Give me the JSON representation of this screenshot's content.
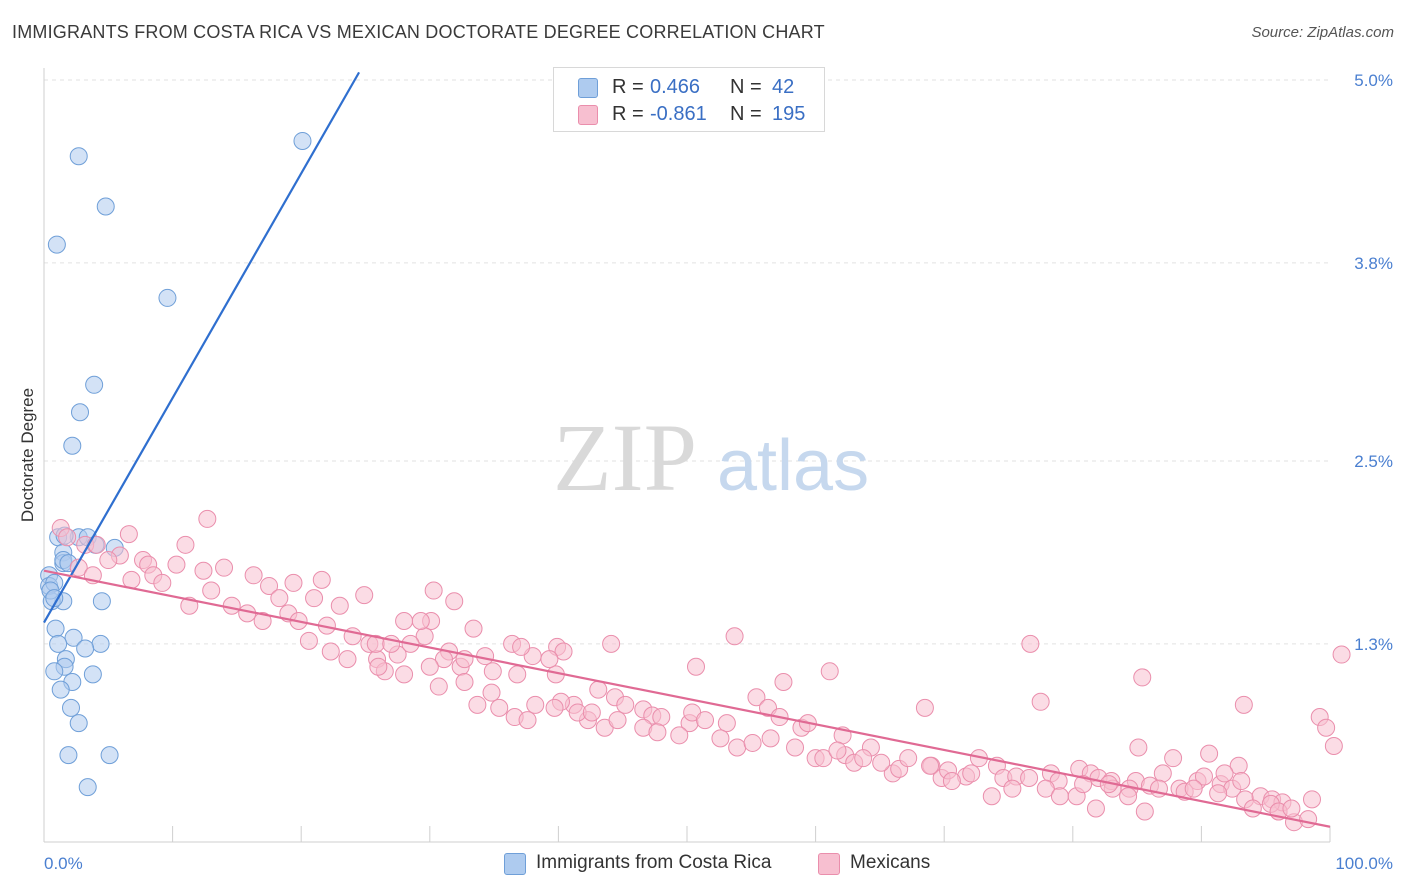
{
  "title": "IMMIGRANTS FROM COSTA RICA VS MEXICAN DOCTORATE DEGREE CORRELATION CHART",
  "source": "Source: ZipAtlas.com",
  "watermark": {
    "zip": "ZIP",
    "atlas": "atlas"
  },
  "legend": {
    "rows": [
      {
        "r_label": "R =",
        "r_value": "0.466",
        "n_label": "N =",
        "n_value": "42",
        "color": "#aecbef",
        "border": "#6f9fd8"
      },
      {
        "r_label": "R =",
        "r_value": "-0.861",
        "n_label": "N =",
        "n_value": "195",
        "color": "#f7bfd0",
        "border": "#ea8eac"
      }
    ]
  },
  "bottom_legend": [
    {
      "label": "Immigrants from Costa Rica",
      "color": "#aecbef",
      "border": "#6f9fd8"
    },
    {
      "label": "Mexicans",
      "color": "#f7bfd0",
      "border": "#ea8eac"
    }
  ],
  "chart_data": {
    "type": "scatter",
    "ylabel": "Doctorate Degree",
    "xlim": [
      0,
      100
    ],
    "ylim": [
      0.0,
      5.0
    ],
    "x_tick_labels": [
      "0.0%",
      "100.0%"
    ],
    "y_ticks": [
      1.3,
      2.5,
      3.8,
      5.0
    ],
    "y_tick_labels": [
      "1.3%",
      "2.5%",
      "3.8%",
      "5.0%"
    ],
    "series": [
      {
        "name": "Immigrants from Costa Rica",
        "color": "#6f9fd8",
        "fill": "#aecbef",
        "line_color": "#2f6fcf",
        "trend": {
          "x0": 0,
          "y0": 1.44,
          "x1": 24.5,
          "y1": 5.05
        },
        "points": [
          [
            2.7,
            4.5
          ],
          [
            4.8,
            4.17
          ],
          [
            1.0,
            3.92
          ],
          [
            9.6,
            3.57
          ],
          [
            1.1,
            2.0
          ],
          [
            2.7,
            2.0
          ],
          [
            1.5,
            1.9
          ],
          [
            1.5,
            1.83
          ],
          [
            0.4,
            1.75
          ],
          [
            0.4,
            1.68
          ],
          [
            1.5,
            1.58
          ],
          [
            0.6,
            1.58
          ],
          [
            4.5,
            1.58
          ],
          [
            0.9,
            1.4
          ],
          [
            2.3,
            1.34
          ],
          [
            1.1,
            1.3
          ],
          [
            4.4,
            1.3
          ],
          [
            3.2,
            1.27
          ],
          [
            1.7,
            1.2
          ],
          [
            1.6,
            1.15
          ],
          [
            0.8,
            1.12
          ],
          [
            3.8,
            1.1
          ],
          [
            2.2,
            1.05
          ],
          [
            1.3,
            1.0
          ],
          [
            2.1,
            0.88
          ],
          [
            2.7,
            0.78
          ],
          [
            1.9,
            0.57
          ],
          [
            5.1,
            0.57
          ],
          [
            3.4,
            0.36
          ],
          [
            3.4,
            2.0
          ],
          [
            5.5,
            1.93
          ],
          [
            4.0,
            1.95
          ],
          [
            1.5,
            1.85
          ],
          [
            1.9,
            1.83
          ],
          [
            0.8,
            1.7
          ],
          [
            0.5,
            1.65
          ],
          [
            1.6,
            2.01
          ],
          [
            20.1,
            4.6
          ],
          [
            3.9,
            3.0
          ],
          [
            2.8,
            2.82
          ],
          [
            2.2,
            2.6
          ],
          [
            0.8,
            1.6
          ]
        ]
      },
      {
        "name": "Mexicans",
        "color": "#ea8eac",
        "fill": "#f7bfd0",
        "line_color": "#e06a94",
        "trend": {
          "x0": 0,
          "y0": 1.78,
          "x1": 100,
          "y1": 0.1
        },
        "points": [
          [
            1.3,
            2.06
          ],
          [
            1.8,
            2.0
          ],
          [
            3.2,
            1.95
          ],
          [
            6.6,
            2.02
          ],
          [
            4.1,
            1.95
          ],
          [
            5.9,
            1.88
          ],
          [
            7.7,
            1.85
          ],
          [
            11.0,
            1.95
          ],
          [
            12.7,
            2.12
          ],
          [
            8.1,
            1.82
          ],
          [
            10.3,
            1.82
          ],
          [
            5.0,
            1.85
          ],
          [
            6.8,
            1.72
          ],
          [
            8.5,
            1.75
          ],
          [
            9.2,
            1.7
          ],
          [
            2.7,
            1.8
          ],
          [
            3.8,
            1.75
          ],
          [
            12.4,
            1.78
          ],
          [
            13.0,
            1.65
          ],
          [
            11.3,
            1.55
          ],
          [
            14.0,
            1.8
          ],
          [
            16.3,
            1.75
          ],
          [
            17.5,
            1.68
          ],
          [
            18.3,
            1.6
          ],
          [
            19.4,
            1.7
          ],
          [
            21.6,
            1.72
          ],
          [
            19.0,
            1.5
          ],
          [
            21.0,
            1.6
          ],
          [
            23.0,
            1.55
          ],
          [
            22.0,
            1.42
          ],
          [
            24.0,
            1.35
          ],
          [
            14.6,
            1.55
          ],
          [
            15.8,
            1.5
          ],
          [
            17.0,
            1.45
          ],
          [
            19.8,
            1.45
          ],
          [
            20.6,
            1.32
          ],
          [
            22.3,
            1.25
          ],
          [
            25.9,
            1.2
          ],
          [
            27.5,
            1.23
          ],
          [
            28.0,
            1.1
          ],
          [
            30.7,
            1.02
          ],
          [
            30.1,
            1.45
          ],
          [
            29.6,
            1.35
          ],
          [
            31.5,
            1.25
          ],
          [
            32.4,
            1.15
          ],
          [
            33.4,
            1.4
          ],
          [
            34.3,
            1.22
          ],
          [
            36.4,
            1.3
          ],
          [
            36.8,
            1.1
          ],
          [
            39.9,
            1.28
          ],
          [
            38.0,
            1.22
          ],
          [
            39.8,
            1.1
          ],
          [
            40.4,
            1.25
          ],
          [
            41.2,
            0.9
          ],
          [
            40.2,
            0.92
          ],
          [
            42.3,
            0.8
          ],
          [
            43.1,
            1.0
          ],
          [
            44.4,
            0.95
          ],
          [
            45.2,
            0.9
          ],
          [
            46.6,
            0.87
          ],
          [
            47.3,
            0.83
          ],
          [
            48.0,
            0.82
          ],
          [
            50.2,
            0.78
          ],
          [
            50.4,
            0.85
          ],
          [
            51.4,
            0.8
          ],
          [
            53.1,
            0.78
          ],
          [
            55.4,
            0.95
          ],
          [
            56.3,
            0.88
          ],
          [
            57.2,
            0.82
          ],
          [
            58.9,
            0.75
          ],
          [
            59.4,
            0.78
          ],
          [
            62.1,
            0.7
          ],
          [
            62.3,
            0.57
          ],
          [
            63.0,
            0.52
          ],
          [
            64.3,
            0.62
          ],
          [
            66.0,
            0.45
          ],
          [
            66.5,
            0.48
          ],
          [
            69.0,
            0.5
          ],
          [
            69.8,
            0.42
          ],
          [
            70.3,
            0.47
          ],
          [
            71.7,
            0.43
          ],
          [
            72.7,
            0.55
          ],
          [
            74.1,
            0.5
          ],
          [
            74.6,
            0.42
          ],
          [
            75.6,
            0.43
          ],
          [
            78.3,
            0.45
          ],
          [
            78.9,
            0.4
          ],
          [
            80.5,
            0.48
          ],
          [
            81.4,
            0.45
          ],
          [
            82.0,
            0.42
          ],
          [
            83.0,
            0.4
          ],
          [
            84.9,
            0.4
          ],
          [
            86.0,
            0.37
          ],
          [
            87.0,
            0.45
          ],
          [
            88.3,
            0.35
          ],
          [
            89.7,
            0.4
          ],
          [
            90.2,
            0.43
          ],
          [
            91.5,
            0.38
          ],
          [
            92.4,
            0.35
          ],
          [
            93.4,
            0.28
          ],
          [
            94.6,
            0.3
          ],
          [
            95.5,
            0.28
          ],
          [
            96.0,
            0.2
          ],
          [
            97.2,
            0.13
          ],
          [
            96.3,
            0.26
          ],
          [
            98.6,
            0.28
          ],
          [
            98.3,
            0.15
          ],
          [
            99.2,
            0.82
          ],
          [
            99.7,
            0.75
          ],
          [
            100.3,
            0.63
          ],
          [
            100.9,
            1.23
          ],
          [
            93.3,
            0.9
          ],
          [
            85.4,
            1.08
          ],
          [
            77.5,
            0.92
          ],
          [
            76.7,
            1.3
          ],
          [
            68.5,
            0.88
          ],
          [
            61.1,
            1.12
          ],
          [
            57.5,
            1.05
          ],
          [
            53.7,
            1.35
          ],
          [
            50.7,
            1.15
          ],
          [
            44.1,
            1.3
          ],
          [
            39.3,
            1.2
          ],
          [
            37.1,
            1.28
          ],
          [
            32.7,
            1.05
          ],
          [
            34.9,
            1.12
          ],
          [
            31.1,
            1.2
          ],
          [
            25.3,
            1.3
          ],
          [
            26.5,
            1.12
          ],
          [
            28.5,
            1.3
          ],
          [
            30.0,
            1.15
          ],
          [
            23.6,
            1.2
          ],
          [
            24.9,
            1.62
          ],
          [
            25.8,
            1.3
          ],
          [
            27.0,
            1.3
          ],
          [
            28.0,
            1.45
          ],
          [
            29.3,
            1.45
          ],
          [
            30.3,
            1.65
          ],
          [
            31.9,
            1.58
          ],
          [
            32.7,
            1.2
          ],
          [
            26.0,
            1.15
          ],
          [
            33.7,
            0.9
          ],
          [
            34.8,
            0.98
          ],
          [
            35.4,
            0.88
          ],
          [
            36.6,
            0.82
          ],
          [
            37.6,
            0.8
          ],
          [
            38.2,
            0.9
          ],
          [
            39.7,
            0.88
          ],
          [
            41.5,
            0.85
          ],
          [
            42.6,
            0.85
          ],
          [
            43.6,
            0.75
          ],
          [
            44.6,
            0.8
          ],
          [
            46.6,
            0.75
          ],
          [
            47.7,
            0.72
          ],
          [
            49.4,
            0.7
          ],
          [
            52.6,
            0.68
          ],
          [
            53.9,
            0.62
          ],
          [
            55.1,
            0.65
          ],
          [
            56.5,
            0.68
          ],
          [
            58.4,
            0.62
          ],
          [
            60.0,
            0.55
          ],
          [
            60.6,
            0.55
          ],
          [
            61.7,
            0.6
          ],
          [
            63.7,
            0.55
          ],
          [
            65.1,
            0.52
          ],
          [
            67.2,
            0.55
          ],
          [
            68.9,
            0.5
          ],
          [
            70.6,
            0.4
          ],
          [
            72.1,
            0.45
          ],
          [
            73.7,
            0.3
          ],
          [
            75.3,
            0.35
          ],
          [
            76.6,
            0.42
          ],
          [
            77.9,
            0.35
          ],
          [
            79.0,
            0.3
          ],
          [
            80.3,
            0.3
          ],
          [
            81.8,
            0.22
          ],
          [
            83.1,
            0.35
          ],
          [
            84.4,
            0.35
          ],
          [
            85.6,
            0.2
          ],
          [
            87.8,
            0.55
          ],
          [
            88.7,
            0.33
          ],
          [
            90.6,
            0.58
          ],
          [
            91.3,
            0.32
          ],
          [
            92.9,
            0.5
          ],
          [
            94.0,
            0.22
          ],
          [
            95.4,
            0.25
          ],
          [
            96.0,
            0.2
          ],
          [
            97.0,
            0.22
          ],
          [
            85.1,
            0.62
          ],
          [
            84.3,
            0.3
          ],
          [
            86.7,
            0.35
          ],
          [
            89.4,
            0.35
          ],
          [
            91.8,
            0.45
          ],
          [
            93.1,
            0.4
          ],
          [
            80.8,
            0.38
          ],
          [
            82.8,
            0.38
          ]
        ]
      }
    ]
  }
}
